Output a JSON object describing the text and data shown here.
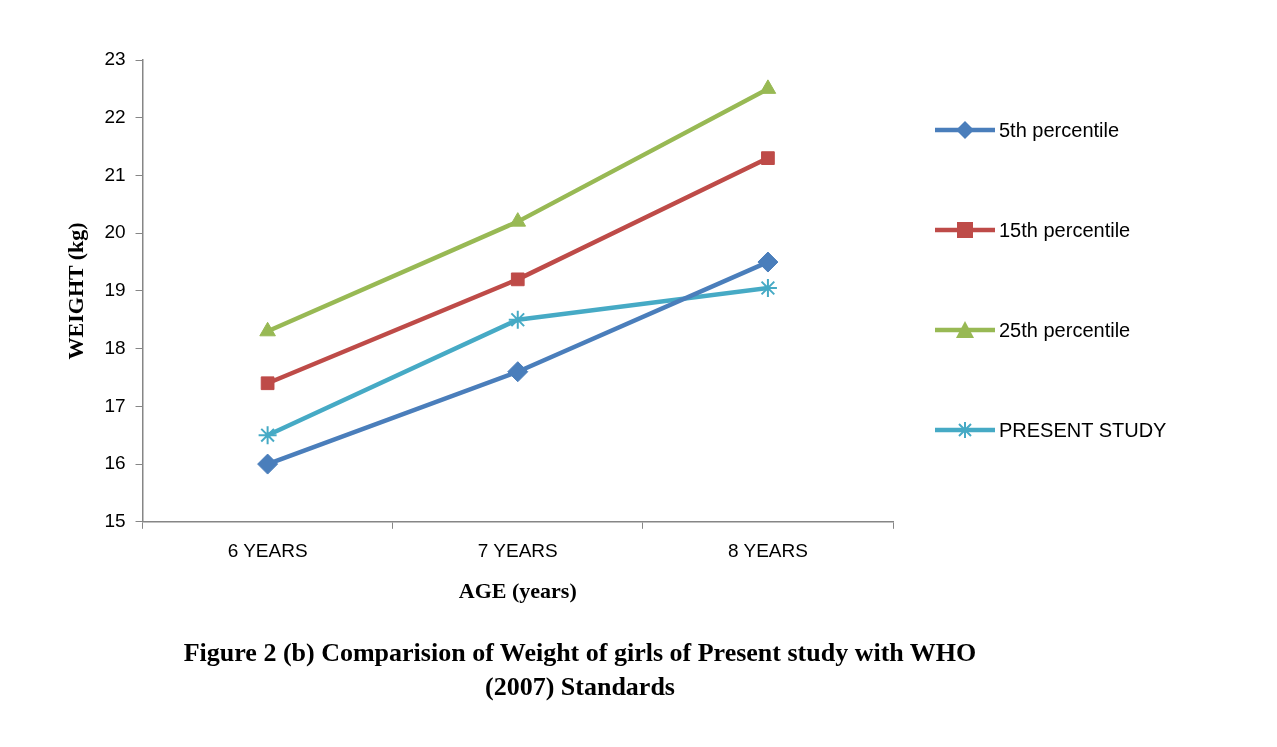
{
  "chart_data": {
    "type": "line",
    "title": "Figure 2 (b) Comparision of Weight of girls of Present study with WHO (2007) Standards",
    "xlabel": "AGE (years)",
    "ylabel": "WEIGHT (kg)",
    "categories": [
      "6 YEARS",
      "7 YEARS",
      "8 YEARS"
    ],
    "series": [
      {
        "name": "5th percentile",
        "color": "#4a7ebb",
        "marker": "diamond",
        "values": [
          16,
          17.6,
          19.5
        ]
      },
      {
        "name": "15th percentile",
        "color": "#be4b48",
        "marker": "square",
        "values": [
          17.4,
          19.2,
          21.3
        ]
      },
      {
        "name": "25th percentile",
        "color": "#98b954",
        "marker": "triangle",
        "values": [
          18.3,
          20.2,
          22.5
        ]
      },
      {
        "name": "PRESENT STUDY",
        "color": "#46aac5",
        "marker": "cross",
        "values": [
          16.5,
          18.5,
          19.05
        ]
      }
    ],
    "ylim": [
      15,
      23
    ],
    "yticks": [
      15,
      16,
      17,
      18,
      19,
      20,
      21,
      22,
      23
    ],
    "grid": false,
    "legend": "right",
    "line_style": "solid"
  }
}
